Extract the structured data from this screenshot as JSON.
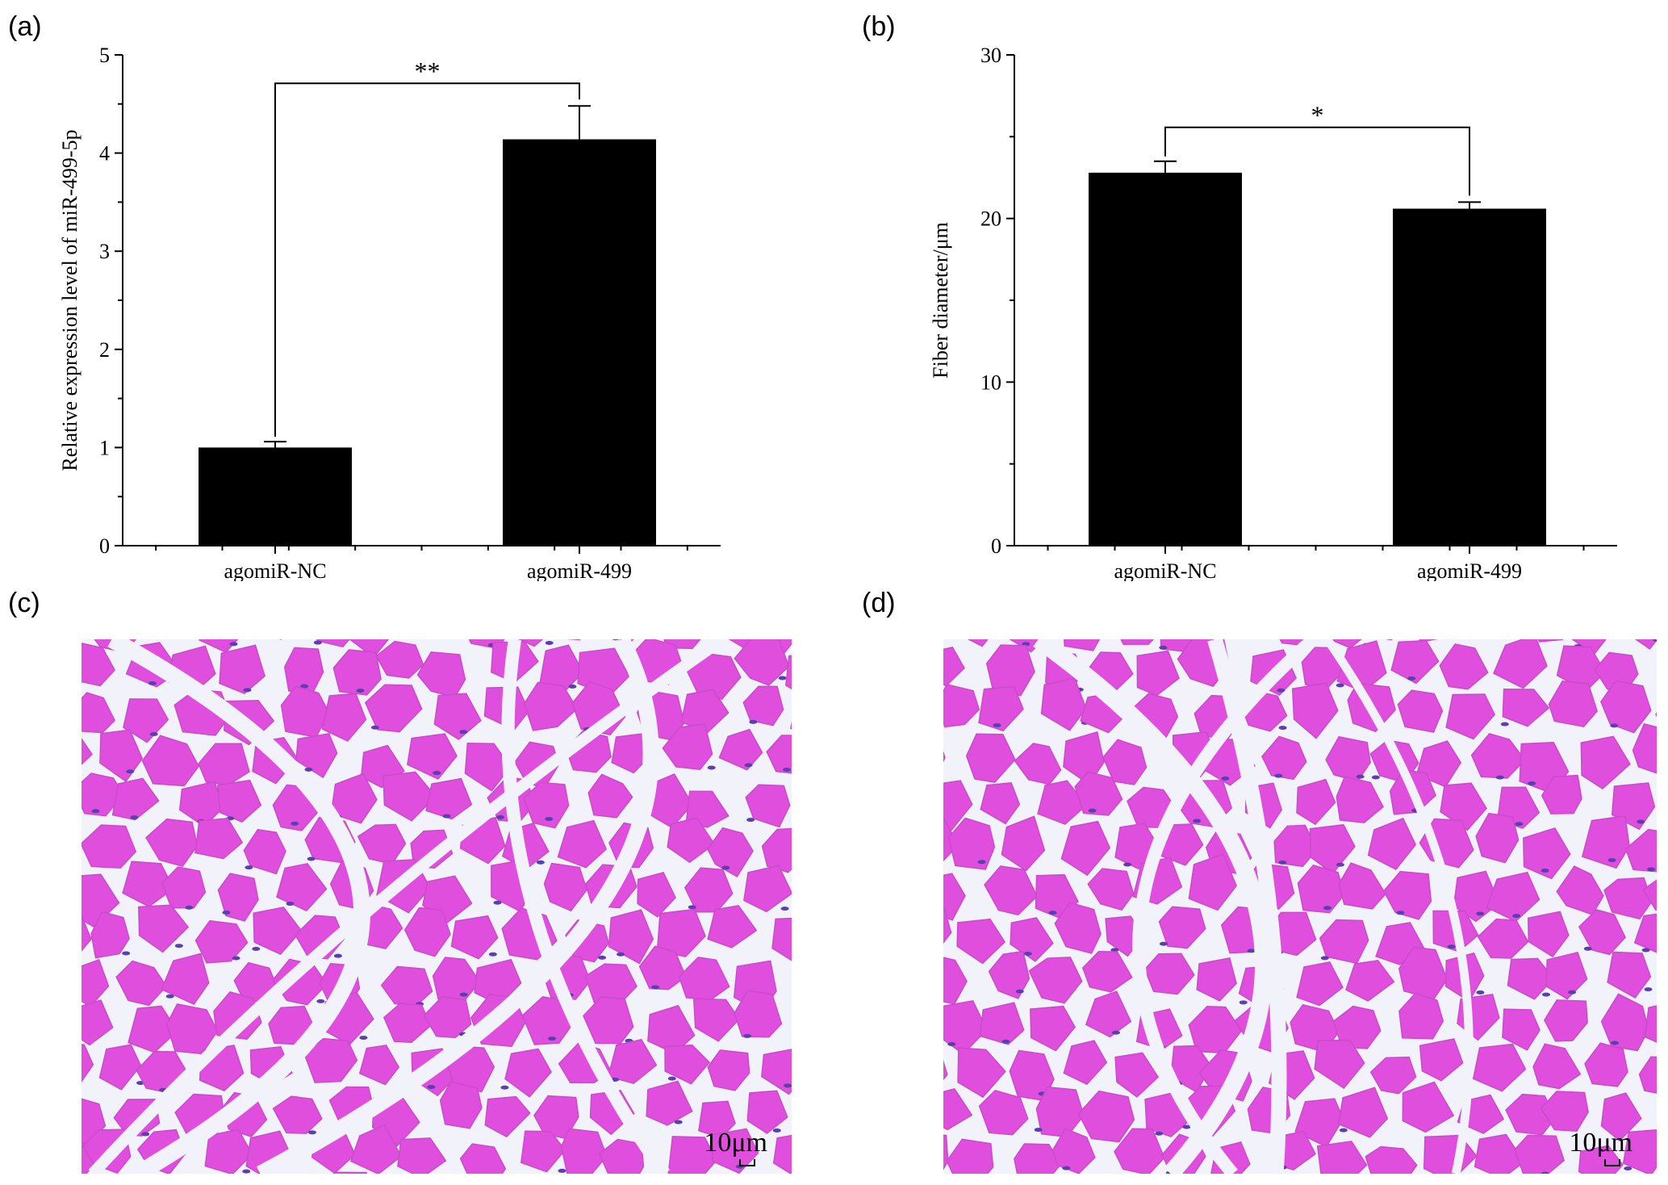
{
  "panels": {
    "a": "(a)",
    "b": "(b)",
    "c": "(c)",
    "d": "(d)"
  },
  "chart_data": [
    {
      "type": "bar",
      "categories": [
        "agomiR-NC",
        "agomiR-499"
      ],
      "values": [
        1.0,
        4.14
      ],
      "errors": [
        0.06,
        0.34
      ],
      "ylabel": "Relative expression level of miR-499-5p",
      "ylim": [
        0,
        5
      ],
      "yticks": [
        0,
        1,
        2,
        3,
        4,
        5
      ],
      "significance": "**",
      "bar_color": "#000000"
    },
    {
      "type": "bar",
      "categories": [
        "agomiR-NC",
        "agomiR-499"
      ],
      "values": [
        22.8,
        20.6
      ],
      "errors": [
        0.7,
        0.4
      ],
      "ylabel": "Fiber diameter/μm",
      "ylim": [
        0,
        30
      ],
      "yticks": [
        0,
        10,
        20,
        30
      ],
      "significance": "*",
      "bar_color": "#000000"
    }
  ],
  "micrographs": [
    {
      "scale_bar": "10μm"
    },
    {
      "scale_bar": "10μm"
    }
  ],
  "colors": {
    "tissue": "#e04ede",
    "connective": "#f2f2fa",
    "nuclei": "#5a3fb0"
  }
}
